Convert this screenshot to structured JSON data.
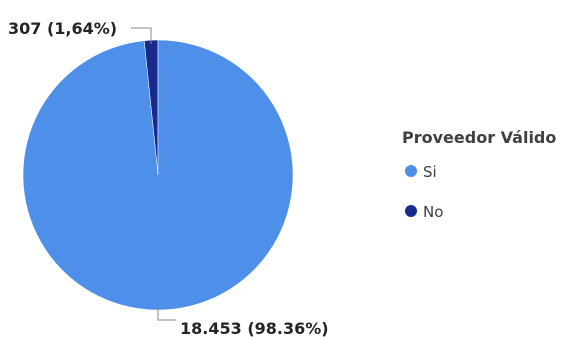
{
  "chart_data": {
    "type": "pie",
    "title": "",
    "categories": [
      "Si",
      "No"
    ],
    "values": [
      18453,
      307
    ],
    "labels": [
      "18.453 (98.36%)",
      "307 (1,64%)"
    ],
    "colors": [
      "#4E8FEA",
      "#1A2A8C"
    ],
    "legend": {
      "title": "Proveedor Válido",
      "position": "right"
    }
  }
}
